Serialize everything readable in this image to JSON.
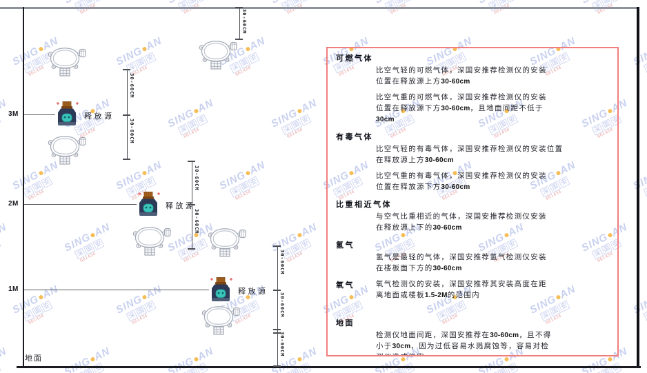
{
  "diagram": {
    "scale_labels": [
      "3M",
      "2M",
      "1M"
    ],
    "source_label": "释放源",
    "ground_label": "地面",
    "dim_label": "30-60CM"
  },
  "watermark": {
    "brand_left": "SING",
    "brand_right": "AN",
    "boxed": "深国安",
    "code": "661434"
  },
  "colors": {
    "panel_border": "#f27d7d",
    "watermark_blue": "#5c74ce",
    "watermark_dot": "#f2a71f",
    "source_body": "#2c3a58",
    "source_blob": "#39c4bc",
    "source_cap": "#a9631f"
  },
  "panel": {
    "sections": [
      {
        "heading": "可燃气体",
        "paragraphs": [
          [
            "比空气轻的可燃气体，深国安推荐检测仪的安装",
            "位置在释放源上方30-60cm"
          ],
          [
            "比空气重的可燃气体，深国安推荐检测仪的安装",
            "位置在释放源下方30-60cm，且地面间距不低于",
            "30cm"
          ]
        ]
      },
      {
        "heading": "有毒气体",
        "paragraphs": [
          [
            "比空气轻的有毒气体，深国安推荐检测仪的安装位置",
            "在释放源上方30-60cm"
          ],
          [
            "比空气重的有毒气体，深国安推荐检测仪的安装",
            "位置在释放源下方30-60cm"
          ]
        ]
      },
      {
        "heading": "比重相近气体",
        "paragraphs": [
          [
            "与空气比重相近的气体，深国安推荐检测仪安装",
            "在释放源上下的30-60cm"
          ]
        ]
      },
      {
        "heading": "氢气",
        "paragraphs": [
          [
            "氢气是最轻的气体，深国安推荐氢气检测仪安装",
            "在楼板面下方的30-60cm"
          ]
        ]
      },
      {
        "heading": "氧气",
        "paragraphs": [
          [
            "氧气检测仪的安装，深国安推荐其安装高度在距",
            "离地面或楼板1.5-2M的范围内"
          ]
        ]
      },
      {
        "heading": "地面",
        "paragraphs": [
          [
            "检测仪地面间距，深国安推荐在30-60cm，且不得",
            "小于30cm，因为过低容易水溅腐蚀等，容易对检",
            "测仪造成伤害"
          ]
        ]
      }
    ]
  }
}
